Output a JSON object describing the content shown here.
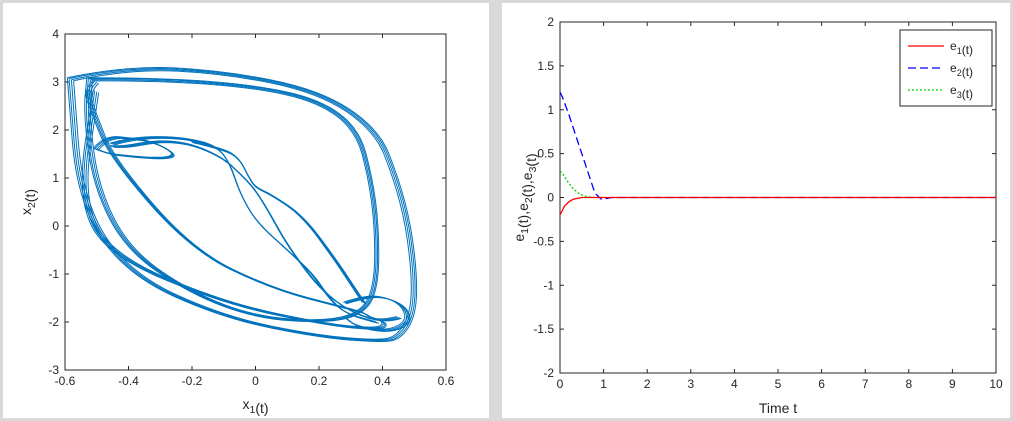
{
  "chart_data": [
    {
      "type": "line",
      "subtype": "phase-portrait",
      "title": "",
      "xlabel": "x",
      "xlabel_sub": "1",
      "xlabel_suffix": "(t)",
      "ylabel": "x",
      "ylabel_sub": "2",
      "ylabel_suffix": "(t)",
      "xlim": [
        -0.6,
        0.6
      ],
      "ylim": [
        -3,
        4
      ],
      "xticks": [
        "-0.6",
        "-0.4",
        "-0.2",
        "0",
        "0.2",
        "0.4",
        "0.6"
      ],
      "yticks": [
        "-3",
        "-2",
        "-1",
        "0",
        "1",
        "2",
        "3",
        "4"
      ],
      "grid": false,
      "color": "#0072bd",
      "series": [
        {
          "x": [
            -0.5,
            -0.53,
            -0.51,
            -0.45,
            -0.2,
            0.05,
            0.28,
            0.34,
            0.36,
            0.41,
            0.39,
            0.22,
            -0.1,
            -0.46,
            -0.55,
            -0.5
          ],
          "y": [
            3.0,
            2.8,
            2.4,
            1.4,
            -0.5,
            -1.3,
            -1.7,
            -1.8,
            -1.9,
            -2.0,
            -2.15,
            -2.05,
            -1.6,
            -0.6,
            0.6,
            2.8
          ]
        },
        {
          "x": [
            -0.52,
            -0.3,
            0.0,
            0.2,
            0.32,
            0.36,
            0.38,
            0.38,
            0.34,
            0.22,
            0.0,
            -0.2,
            -0.4,
            -0.5,
            -0.53,
            -0.52
          ],
          "y": [
            3.05,
            3.05,
            2.9,
            2.6,
            2.0,
            1.0,
            0.0,
            -1.2,
            -1.8,
            -2.0,
            -1.9,
            -1.4,
            -0.5,
            0.8,
            2.3,
            3.05
          ]
        },
        {
          "x": [
            -0.45,
            -0.4,
            -0.3,
            -0.2,
            -0.12,
            -0.08,
            -0.05,
            0.0,
            0.1,
            0.18,
            0.22,
            0.26,
            0.3,
            0.35,
            0.38
          ],
          "y": [
            1.7,
            1.8,
            1.85,
            1.8,
            1.65,
            1.3,
            0.7,
            0.1,
            -0.5,
            -1.0,
            -1.4,
            -1.7,
            -1.85,
            -1.95,
            -2.0
          ]
        },
        {
          "x": [
            0.45,
            0.4,
            0.3,
            0.2,
            0.1,
            0.05,
            0.0,
            -0.05,
            -0.1,
            -0.18,
            -0.25,
            -0.32,
            -0.4,
            -0.45
          ],
          "y": [
            -1.9,
            -2.0,
            -1.8,
            -1.3,
            -0.4,
            0.2,
            0.75,
            1.1,
            1.4,
            1.65,
            1.75,
            1.75,
            1.65,
            1.65
          ]
        },
        {
          "x": [
            -0.2,
            -0.1,
            -0.05,
            -0.02,
            0.0,
            0.05,
            0.15,
            0.25,
            0.3,
            0.34
          ],
          "y": [
            1.75,
            1.6,
            1.4,
            1.0,
            0.8,
            0.65,
            0.2,
            -0.7,
            -1.2,
            -1.6
          ]
        },
        {
          "x": [
            0.28,
            0.35,
            0.42,
            0.47,
            0.48,
            0.42,
            0.32,
            0.28
          ],
          "y": [
            -1.6,
            -1.45,
            -1.5,
            -1.7,
            -2.0,
            -2.2,
            -2.1,
            -1.9
          ]
        },
        {
          "x": [
            -0.58,
            -0.4,
            -0.1,
            0.2,
            0.38,
            0.44,
            0.48,
            0.5,
            0.49,
            0.45,
            0.4,
            0.2,
            -0.1,
            -0.4,
            -0.55,
            -0.58
          ],
          "y": [
            3.05,
            3.3,
            3.2,
            2.8,
            2.0,
            1.0,
            0.0,
            -1.2,
            -1.9,
            -2.3,
            -2.4,
            -2.3,
            -1.9,
            -1.0,
            0.5,
            3.05
          ]
        },
        {
          "x": [
            -0.5,
            -0.48,
            -0.44,
            -0.4,
            -0.34,
            -0.28,
            -0.25,
            -0.3,
            -0.4,
            -0.46,
            -0.5
          ],
          "y": [
            1.6,
            1.75,
            1.85,
            1.82,
            1.78,
            1.62,
            1.45,
            1.4,
            1.45,
            1.5,
            1.6
          ]
        }
      ]
    },
    {
      "type": "line",
      "title": "",
      "xlabel": "Time t",
      "ylabel_parts": [
        {
          "t": "e",
          "sub": "1"
        },
        {
          "t": "(t),e",
          "sub": "2"
        },
        {
          "t": "(t),e",
          "sub": "3"
        },
        {
          "t": "(t)",
          "sub": ""
        }
      ],
      "xlim": [
        0,
        10
      ],
      "ylim": [
        -2,
        2
      ],
      "xticks": [
        "0",
        "1",
        "2",
        "3",
        "4",
        "5",
        "6",
        "7",
        "8",
        "9",
        "10"
      ],
      "yticks": [
        "-2",
        "-1.5",
        "-1",
        "-0.5",
        "0",
        "0.5",
        "1",
        "1.5",
        "2"
      ],
      "grid": false,
      "legend_position": "top-right",
      "series": [
        {
          "name": "e",
          "name_sub": "1",
          "name_suffix": "(t)",
          "color": "#ff0000",
          "dash": "solid",
          "x": [
            0,
            0.05,
            0.1,
            0.2,
            0.3,
            0.5,
            1,
            10
          ],
          "y": [
            -0.2,
            -0.15,
            -0.1,
            -0.05,
            -0.02,
            0,
            0,
            0
          ]
        },
        {
          "name": "e",
          "name_sub": "2",
          "name_suffix": "(t)",
          "color": "#0000ff",
          "dash": "dashed",
          "x": [
            0,
            0.05,
            0.2,
            0.4,
            0.6,
            0.8,
            0.95,
            1.2,
            10
          ],
          "y": [
            1.2,
            1.15,
            0.95,
            0.65,
            0.35,
            0.05,
            -0.02,
            0,
            0
          ]
        },
        {
          "name": "e",
          "name_sub": "3",
          "name_suffix": "(t)",
          "color": "#00cc00",
          "dash": "dotted",
          "x": [
            0,
            0.05,
            0.15,
            0.3,
            0.45,
            0.6,
            0.8,
            10
          ],
          "y": [
            0.3,
            0.28,
            0.2,
            0.1,
            0.04,
            0.01,
            0,
            0
          ]
        }
      ]
    }
  ]
}
